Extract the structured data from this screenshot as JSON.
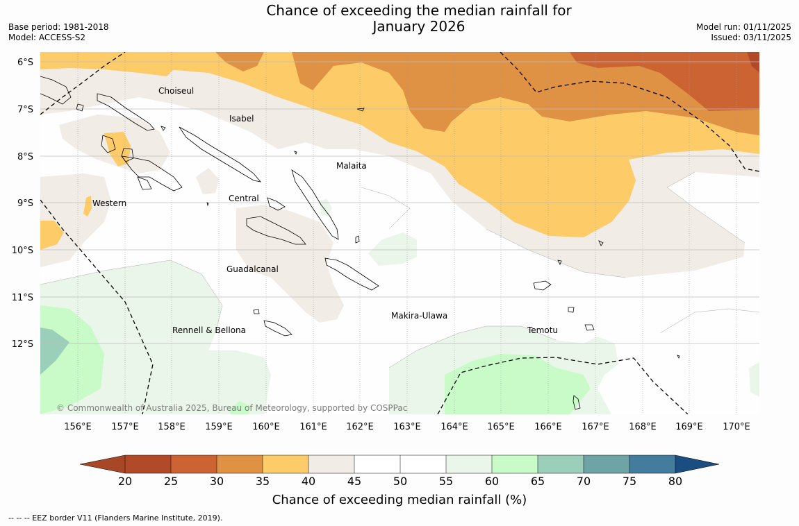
{
  "title": {
    "line1": "Chance of exceeding the median rainfall for",
    "line2": "January 2026"
  },
  "meta": {
    "base_period": "Base period: 1981-2018",
    "model": "Model: ACCESS-S2",
    "model_run": "Model run: 01/11/2025",
    "issued": "Issued: 03/11/2025"
  },
  "map": {
    "lat_labels": [
      "6°S",
      "7°S",
      "8°S",
      "9°S",
      "10°S",
      "11°S",
      "12°S"
    ],
    "lon_labels": [
      "156°E",
      "157°E",
      "158°E",
      "159°E",
      "160°E",
      "161°E",
      "162°E",
      "163°E",
      "164°E",
      "165°E",
      "166°E",
      "167°E",
      "168°E",
      "169°E",
      "170°E"
    ],
    "places": [
      {
        "name": "Choiseul"
      },
      {
        "name": "Isabel"
      },
      {
        "name": "Malaita"
      },
      {
        "name": "Western"
      },
      {
        "name": "Central"
      },
      {
        "name": "Guadalcanal"
      },
      {
        "name": "Makira-Ulawa"
      },
      {
        "name": "Rennell & Bellona"
      },
      {
        "name": "Temotu"
      }
    ],
    "copyright": "© Commonwealth of Australia 2025, Bureau of Meteorology, supported by COSPPac"
  },
  "colorbar": {
    "title": "Chance of exceeding median rainfall (%)",
    "ticks": [
      "20",
      "25",
      "30",
      "35",
      "40",
      "45",
      "50",
      "55",
      "60",
      "65",
      "70",
      "75",
      "80"
    ],
    "colors": [
      "#a84725",
      "#b04a28",
      "#cb6332",
      "#e09244",
      "#fdcb67",
      "#f1ece6",
      "#ffffff",
      "#ffffff",
      "#eaf6ea",
      "#c9fbc9",
      "#9ccfb9",
      "#6ea4a5",
      "#437c9d",
      "#1a4e80"
    ]
  },
  "footnote": "--  --  -- EEZ border V11 (Flanders Marine Institute, 2019)."
}
